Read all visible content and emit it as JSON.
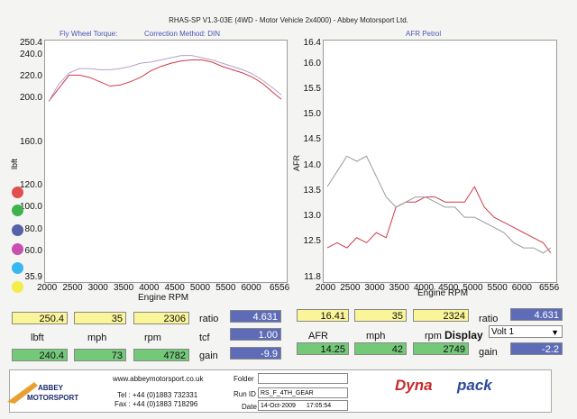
{
  "header": {
    "title": "RHAS-SP V1.3-03E  (4WD - Motor Vehicle 2x4000) - Abbey Motorsport Ltd."
  },
  "left_sub": {
    "left": "Fly Wheel Torque:",
    "right": "Correction Method: DIN"
  },
  "right_sub": {
    "title": "AFR Petrol"
  },
  "colors": {
    "red": "#e05050",
    "green": "#3fb24f",
    "blue": "#5661a8",
    "magenta": "#c84fb0",
    "cyan": "#38b8ee",
    "yellow": "#f4ec48"
  },
  "chart_data": [
    {
      "type": "line",
      "ylabel": "lbft",
      "xlabel": "Engine RPM",
      "x_ticks": [
        "2000",
        "2500",
        "3000",
        "3500",
        "4000",
        "4500",
        "5000",
        "5500",
        "6000",
        "6556"
      ],
      "y_ticks": [
        "250.4",
        "240.0",
        "220.0",
        "200.0",
        "160.0",
        "120.0",
        "100.0",
        "80.0",
        "60.0",
        "35.9"
      ],
      "xlim": [
        2000,
        6556
      ],
      "ylim": [
        35.9,
        250.4
      ],
      "series": [
        {
          "color": "#d03a4a",
          "x": [
            2000,
            2200,
            2400,
            2600,
            2800,
            3000,
            3200,
            3400,
            3600,
            3800,
            4000,
            4200,
            4400,
            4600,
            4800,
            5000,
            5200,
            5400,
            5600,
            5800,
            6000,
            6200,
            6400,
            6556
          ],
          "y": [
            198,
            210,
            222,
            222,
            220,
            216,
            212,
            213,
            216,
            220,
            226,
            230,
            233,
            235,
            236,
            236,
            234,
            230,
            227,
            224,
            220,
            214,
            206,
            200
          ]
        },
        {
          "color": "#b8a0c8",
          "x": [
            2000,
            2200,
            2400,
            2600,
            2800,
            3000,
            3200,
            3400,
            3600,
            3800,
            4000,
            4200,
            4400,
            4600,
            4800,
            5000,
            5200,
            5400,
            5600,
            5800,
            6000,
            6200,
            6400,
            6556
          ],
          "y": [
            198,
            214,
            224,
            228,
            228,
            227,
            227,
            228,
            230,
            233,
            234,
            236,
            238,
            240,
            240,
            238,
            236,
            233,
            230,
            227,
            223,
            217,
            210,
            204
          ]
        }
      ]
    },
    {
      "type": "line",
      "ylabel": "AFR",
      "xlabel": "Engine RPM",
      "x_ticks": [
        "2000",
        "2500",
        "3000",
        "3500",
        "4000",
        "4500",
        "5000",
        "5500",
        "6000",
        "6556"
      ],
      "y_ticks": [
        "16.4",
        "16.0",
        "15.5",
        "15.0",
        "14.5",
        "14.0",
        "13.5",
        "13.0",
        "12.5",
        "11.8"
      ],
      "xlim": [
        2000,
        6556
      ],
      "ylim": [
        11.8,
        16.4
      ],
      "series": [
        {
          "color": "#d03a4a",
          "x": [
            2000,
            2200,
            2400,
            2600,
            2800,
            3000,
            3200,
            3400,
            3600,
            3800,
            4000,
            4200,
            4400,
            4600,
            4800,
            5000,
            5200,
            5400,
            5600,
            5800,
            6000,
            6200,
            6400,
            6556
          ],
          "y": [
            12.4,
            12.5,
            12.4,
            12.6,
            12.5,
            12.7,
            12.6,
            13.2,
            13.3,
            13.3,
            13.4,
            13.4,
            13.3,
            13.3,
            13.3,
            13.6,
            13.2,
            13.0,
            12.9,
            12.8,
            12.7,
            12.6,
            12.5,
            12.3
          ]
        },
        {
          "color": "#9a9a9a",
          "x": [
            2000,
            2200,
            2400,
            2600,
            2800,
            3000,
            3200,
            3400,
            3600,
            3800,
            4000,
            4200,
            4400,
            4600,
            4800,
            5000,
            5200,
            5400,
            5600,
            5800,
            6000,
            6200,
            6400,
            6556
          ],
          "y": [
            13.6,
            13.9,
            14.2,
            14.1,
            14.2,
            13.8,
            13.4,
            13.2,
            13.3,
            13.4,
            13.4,
            13.3,
            13.2,
            13.2,
            13.0,
            13.0,
            12.9,
            12.8,
            12.7,
            12.5,
            12.4,
            12.4,
            12.3,
            12.4
          ]
        }
      ]
    }
  ],
  "readouts": {
    "left": {
      "max_torque": "250.4",
      "mph1": "35",
      "rpm1": "2306",
      "ratio_label": "ratio",
      "ratio": "4.631",
      "unit1": "lbft",
      "unit2": "mph",
      "unit3": "rpm",
      "tcf_label": "tcf",
      "tcf": "1.00",
      "torque2": "240.4",
      "mph2": "73",
      "rpm2": "4782",
      "gain_label": "gain",
      "gain": "-9.9"
    },
    "right": {
      "afr1": "16.41",
      "mph1": "35",
      "rpm1": "2324",
      "ratio_label": "ratio",
      "ratio": "4.631",
      "unit1": "AFR",
      "unit2": "mph",
      "unit3": "rpm",
      "display_label": "Display",
      "display_value": "Volt 1",
      "afr2": "14.25",
      "mph2": "42",
      "rpm2": "2749",
      "gain_label": "gain",
      "gain": "-2.2"
    }
  },
  "footer": {
    "website": "www.abbeymotorsport.co.uk",
    "tel": "Tel : +44 (0)1883 732331",
    "fax": "Fax : +44 (0)1883 718296",
    "folder_label": "Folder",
    "runid_label": "Run ID",
    "runid": "RS_F_4TH_GEAR",
    "date_label": "Date",
    "date": "14-Oct-2009",
    "time": "17:05:54",
    "logo_line1": "ABBEY",
    "logo_line2": "MOTORSPORT",
    "brand1": "Dyna",
    "brand2": "pack"
  }
}
